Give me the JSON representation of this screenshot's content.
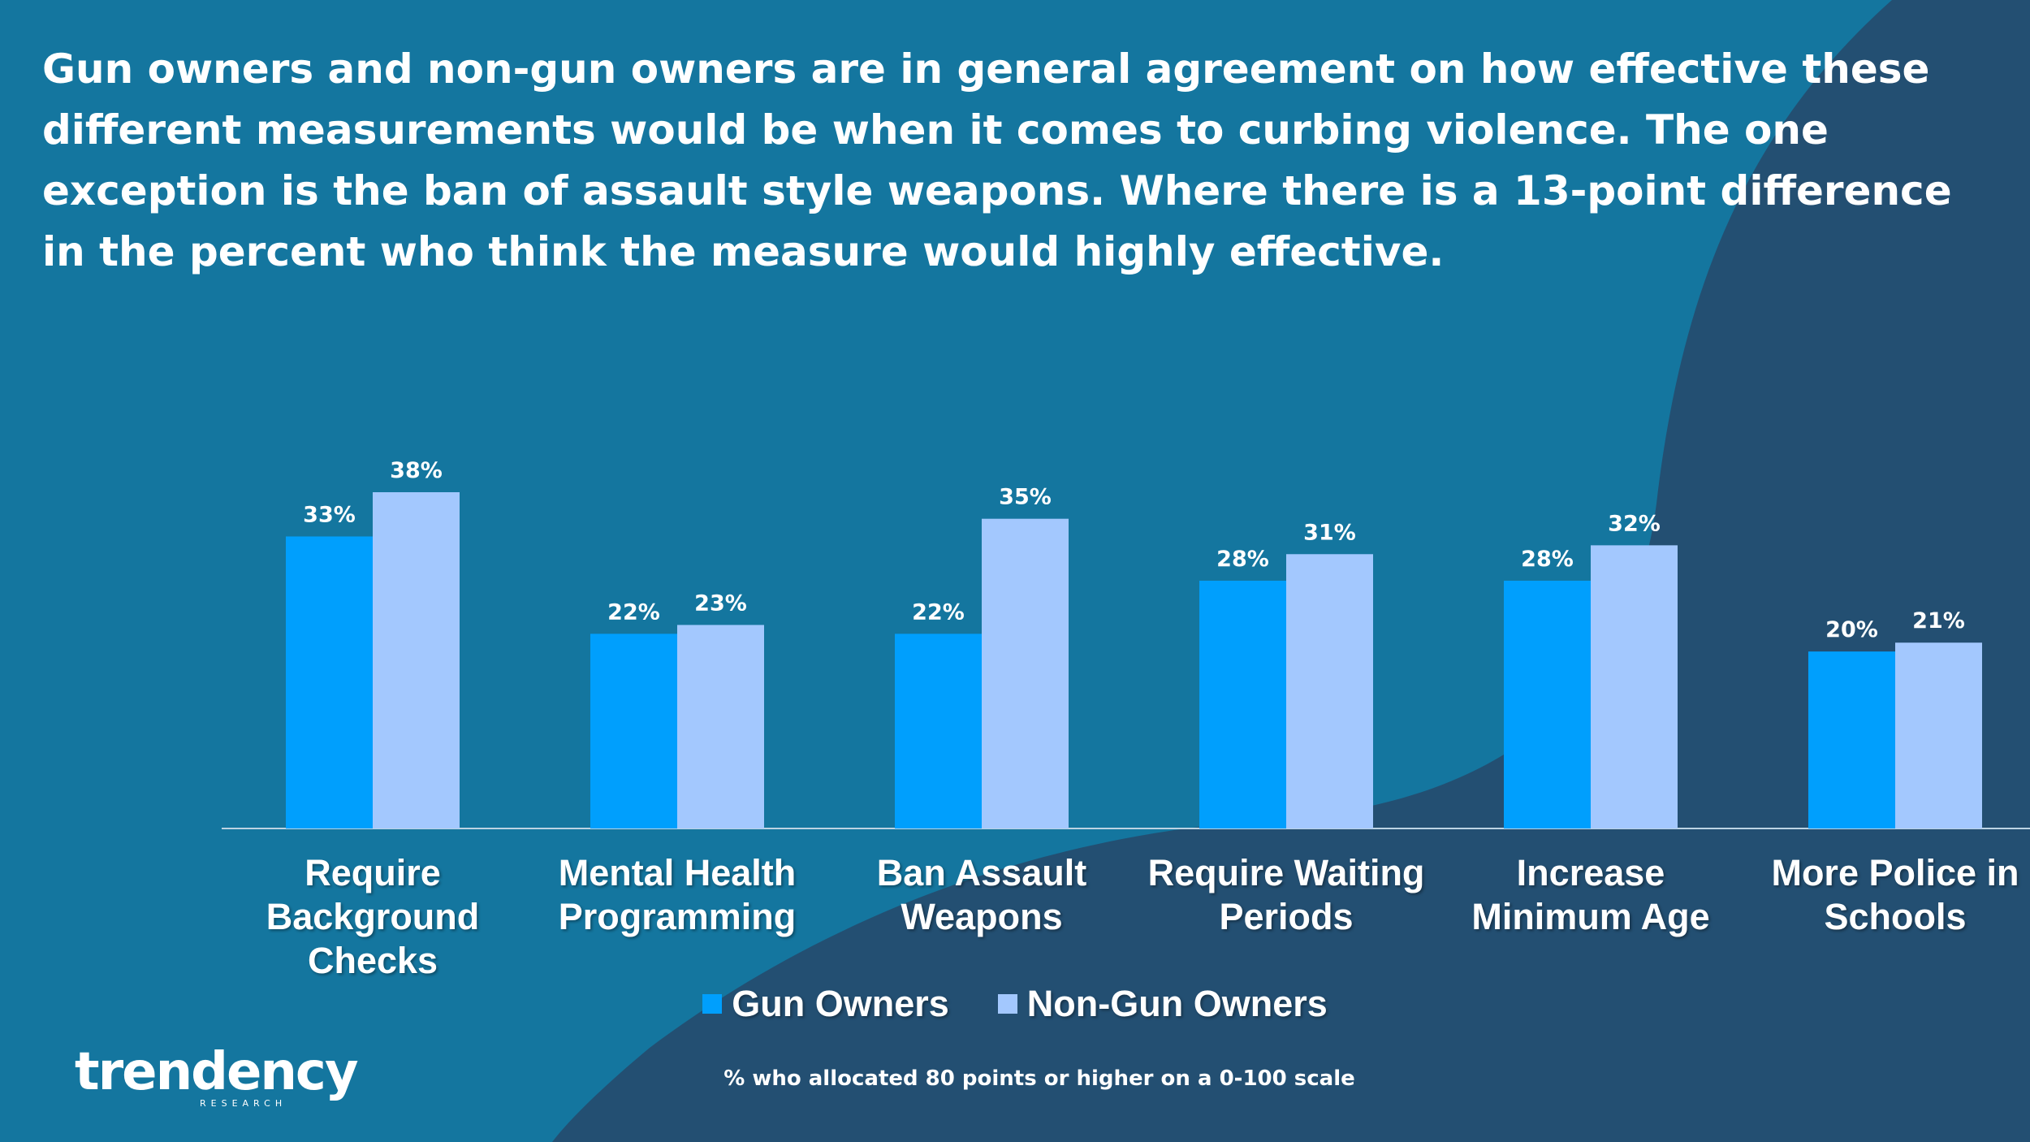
{
  "headline": "Gun owners and non-gun owners are in general agreement on how effective these different measurements would be when it comes to curbing violence. The one exception is the ban of assault style weapons. Where there is a 13-point difference in the percent who think the measure would highly effective.",
  "colors": {
    "background": "#14769f",
    "background_dark": "#234f72",
    "gun_owners": "#009ffd",
    "non_gun_owners": "#a3c8fe",
    "text": "#ffffff"
  },
  "chart_data": {
    "type": "bar",
    "categories": [
      "Require Background Checks",
      "Mental Health Programming",
      "Ban Assault Weapons",
      "Require Waiting Periods",
      "Increase Minimum Age",
      "More Police in Schools"
    ],
    "category_lines": [
      [
        "Require",
        "Background",
        "Checks"
      ],
      [
        "Mental Health",
        "Programming"
      ],
      [
        "Ban Assault",
        "Weapons"
      ],
      [
        "Require Waiting",
        "Periods"
      ],
      [
        "Increase",
        "Minimum Age"
      ],
      [
        "More Police in",
        "Schools"
      ]
    ],
    "series": [
      {
        "name": "Gun Owners",
        "values": [
          33,
          22,
          22,
          28,
          28,
          20
        ],
        "labels": [
          "33%",
          "22%",
          "22%",
          "28%",
          "28%",
          "20%"
        ]
      },
      {
        "name": "Non-Gun Owners",
        "values": [
          38,
          23,
          35,
          31,
          32,
          21
        ],
        "labels": [
          "38%",
          "23%",
          "35%",
          "31%",
          "32%",
          "21%"
        ]
      }
    ],
    "ylim": [
      0,
      38
    ],
    "legend_position": "bottom",
    "grid": false
  },
  "legend": {
    "gun_owners": "Gun Owners",
    "non_gun_owners": "Non-Gun Owners"
  },
  "footnote": "% who allocated 80 points or higher on a 0-100 scale",
  "logo": {
    "name": "trendency",
    "sub": "RESEARCH"
  }
}
